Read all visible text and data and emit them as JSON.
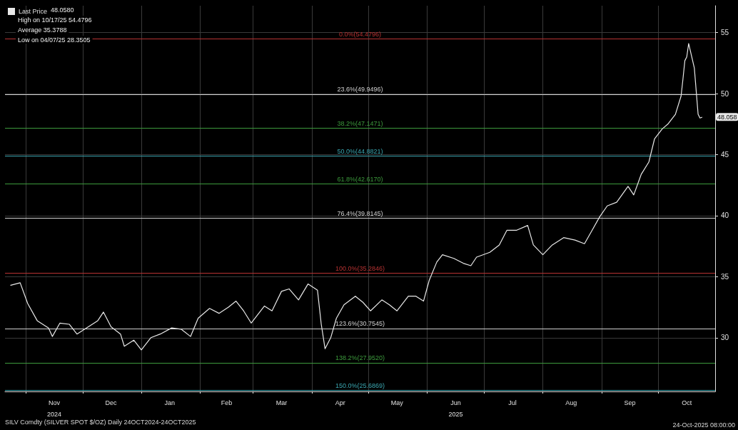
{
  "chart_data": {
    "type": "line",
    "title": "SILV Comdty (SILVER SPOT $/OZ) Daily 24OCT2024-24OCT2025",
    "annotations": [
      "48.0580",
      "High on 10/17/25 54.4796",
      "Average 35.3788",
      "Low on 04/07/25 28.3505",
      "24-Oct-2025 08:00:00",
      {
        "text": "48.058",
        "x": "2025-10-24",
        "y": 48.058
      }
    ],
    "series": [
      {
        "name": "Last Price",
        "color": "#e8e8e8",
        "x": [
          "2024-10-24",
          "2024-10-29",
          "2024-11-02",
          "2024-11-07",
          "2024-11-13",
          "2024-11-15",
          "2024-11-19",
          "2024-11-24",
          "2024-11-28",
          "2024-12-03",
          "2024-12-09",
          "2024-12-12",
          "2024-12-16",
          "2024-12-21",
          "2024-12-23",
          "2024-12-28",
          "2025-01-01",
          "2025-01-06",
          "2025-01-11",
          "2025-01-17",
          "2025-01-22",
          "2025-01-27",
          "2025-01-31",
          "2025-02-06",
          "2025-02-11",
          "2025-02-16",
          "2025-02-20",
          "2025-02-24",
          "2025-02-28",
          "2025-03-07",
          "2025-03-11",
          "2025-03-16",
          "2025-03-20",
          "2025-03-25",
          "2025-03-30",
          "2025-04-04",
          "2025-04-06",
          "2025-04-08",
          "2025-04-11",
          "2025-04-14",
          "2025-04-18",
          "2025-04-24",
          "2025-04-28",
          "2025-05-02",
          "2025-05-08",
          "2025-05-12",
          "2025-05-16",
          "2025-05-22",
          "2025-05-26",
          "2025-05-30",
          "2025-06-02",
          "2025-06-06",
          "2025-06-09",
          "2025-06-15",
          "2025-06-20",
          "2025-06-24",
          "2025-06-27",
          "2025-07-04",
          "2025-07-09",
          "2025-07-13",
          "2025-07-18",
          "2025-07-24",
          "2025-07-27",
          "2025-08-01",
          "2025-08-06",
          "2025-08-12",
          "2025-08-18",
          "2025-08-23",
          "2025-08-27",
          "2025-08-31",
          "2025-09-04",
          "2025-09-09",
          "2025-09-15",
          "2025-09-18",
          "2025-09-22",
          "2025-09-26",
          "2025-09-29",
          "2025-10-03",
          "2025-10-06",
          "2025-10-10",
          "2025-10-13",
          "2025-10-14",
          "2025-10-15",
          "2025-10-16",
          "2025-10-17",
          "2025-10-20",
          "2025-10-22",
          "2025-10-23",
          "2025-10-24"
        ],
        "values": [
          34.3,
          34.5,
          32.8,
          31.4,
          30.8,
          30.1,
          31.2,
          31.1,
          30.3,
          30.8,
          31.4,
          32.1,
          30.9,
          30.3,
          29.3,
          29.8,
          29.0,
          30.0,
          30.3,
          30.8,
          30.7,
          30.1,
          31.6,
          32.4,
          32.0,
          32.5,
          33.0,
          32.2,
          31.2,
          32.6,
          32.2,
          33.8,
          34.0,
          33.1,
          34.4,
          33.9,
          31.1,
          29.1,
          30.0,
          31.6,
          32.7,
          33.4,
          32.9,
          32.2,
          33.1,
          32.7,
          32.2,
          33.4,
          33.4,
          33.0,
          34.7,
          36.2,
          36.8,
          36.5,
          36.1,
          35.9,
          36.6,
          37.0,
          37.6,
          38.8,
          38.8,
          39.2,
          37.6,
          36.8,
          37.6,
          38.2,
          38.0,
          37.7,
          38.8,
          39.9,
          40.8,
          41.1,
          42.4,
          41.7,
          43.4,
          44.4,
          46.3,
          47.1,
          47.5,
          48.3,
          49.8,
          51.2,
          52.7,
          53.0,
          54.1,
          52.1,
          48.3,
          48.0,
          48.06
        ]
      }
    ],
    "xlim": [
      "2024-10-21",
      "2025-10-31"
    ],
    "xticks": [
      {
        "value": "2024-11-01",
        "label": null
      },
      {
        "value": "2024-11-16",
        "label": "Nov\n2024"
      },
      {
        "value": "2024-12-01",
        "label": null
      },
      {
        "value": "2024-12-16",
        "label": "Dec"
      },
      {
        "value": "2025-01-01",
        "label": null
      },
      {
        "value": "2025-01-16",
        "label": "Jan"
      },
      {
        "value": "2025-02-01",
        "label": null
      },
      {
        "value": "2025-02-15",
        "label": "Feb"
      },
      {
        "value": "2025-03-01",
        "label": null
      },
      {
        "value": "2025-03-16",
        "label": "Mar"
      },
      {
        "value": "2025-04-01",
        "label": null
      },
      {
        "value": "2025-04-16",
        "label": "Apr"
      },
      {
        "value": "2025-05-01",
        "label": null
      },
      {
        "value": "2025-05-16",
        "label": "May"
      },
      {
        "value": "2025-06-01",
        "label": null
      },
      {
        "value": "2025-06-16",
        "label": "Jun\n2025"
      },
      {
        "value": "2025-07-01",
        "label": null
      },
      {
        "value": "2025-07-16",
        "label": "Jul"
      },
      {
        "value": "2025-08-01",
        "label": null
      },
      {
        "value": "2025-08-16",
        "label": "Aug"
      },
      {
        "value": "2025-09-01",
        "label": null
      },
      {
        "value": "2025-09-16",
        "label": "Sep"
      },
      {
        "value": "2025-10-01",
        "label": null
      },
      {
        "value": "2025-10-16",
        "label": "Oct"
      }
    ],
    "ylim": [
      25.6,
      57.2
    ],
    "yticks": [
      30,
      35,
      40,
      45,
      50,
      55
    ],
    "grid": true,
    "legend": "top left",
    "marker": "none",
    "line_style": "solid",
    "ref_lines": [
      {
        "axis": "y",
        "value": 54.4796,
        "label": "0.0%(54.4796)",
        "color": "#b83232"
      },
      {
        "axis": "y",
        "value": 49.9496,
        "label": "23.6%(49.9496)",
        "color": "#d0d0d0"
      },
      {
        "axis": "y",
        "value": 47.1471,
        "label": "38.2%(47.1471)",
        "color": "#3c9a3c"
      },
      {
        "axis": "y",
        "value": 44.8821,
        "label": "50.0%(44.8821)",
        "color": "#3aa6b0"
      },
      {
        "axis": "y",
        "value": 42.617,
        "label": "61.8%(42.6170)",
        "color": "#3c9a3c"
      },
      {
        "axis": "y",
        "value": 39.8145,
        "label": "76.4%(39.8145)",
        "color": "#d0d0d0"
      },
      {
        "axis": "y",
        "value": 35.2846,
        "label": "100.0%(35.2846)",
        "color": "#b83232"
      },
      {
        "axis": "y",
        "value": 30.7545,
        "label": "123.6%(30.7545)",
        "color": "#d0d0d0"
      },
      {
        "axis": "y",
        "value": 27.952,
        "label": "138.2%(27.9520)",
        "color": "#3c9a3c"
      },
      {
        "axis": "y",
        "value": 25.6869,
        "label": "150.0%(25.6869)",
        "color": "#3aa6b0"
      }
    ]
  }
}
